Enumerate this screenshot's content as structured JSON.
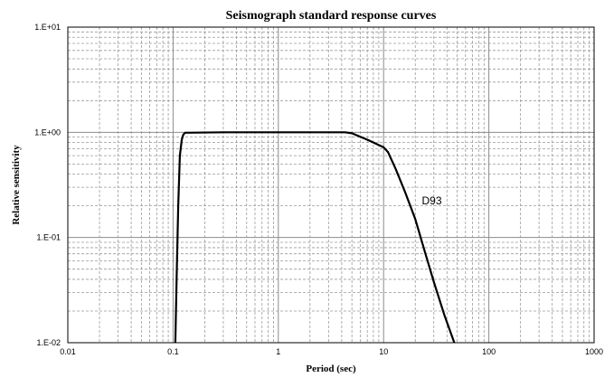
{
  "chart_data": {
    "type": "line",
    "title": "Seismograph standard response curves",
    "xlabel": "Period (sec)",
    "ylabel": "Relative sensitivity",
    "x_scale": "log",
    "y_scale": "log",
    "xlim": [
      0.01,
      1000
    ],
    "ylim": [
      0.01,
      10
    ],
    "grid": true,
    "legend": "none",
    "x_ticks": [
      0.01,
      0.1,
      1,
      10,
      100,
      1000
    ],
    "x_tick_labels": [
      "0.01",
      "0.1",
      "1",
      "10",
      "100",
      "1000"
    ],
    "y_ticks": [
      0.01,
      0.1,
      1,
      10
    ],
    "y_tick_labels": [
      "1.E-02",
      "1.E-01",
      "1.E+00",
      "1.E+01"
    ],
    "series": [
      {
        "name": "D93",
        "x": [
          0.105,
          0.108,
          0.112,
          0.116,
          0.121,
          0.125,
          0.13,
          0.3,
          1,
          4.3,
          5,
          7,
          10,
          11,
          13,
          16,
          20,
          25,
          30,
          38,
          47
        ],
        "y": [
          0.01,
          0.04,
          0.2,
          0.6,
          0.85,
          0.95,
          0.99,
          1.0,
          1.0,
          1.0,
          0.98,
          0.85,
          0.72,
          0.65,
          0.45,
          0.27,
          0.15,
          0.07,
          0.038,
          0.018,
          0.01
        ]
      }
    ],
    "annotations": [
      {
        "text": "D93",
        "x": 25,
        "y": 0.15
      }
    ]
  }
}
